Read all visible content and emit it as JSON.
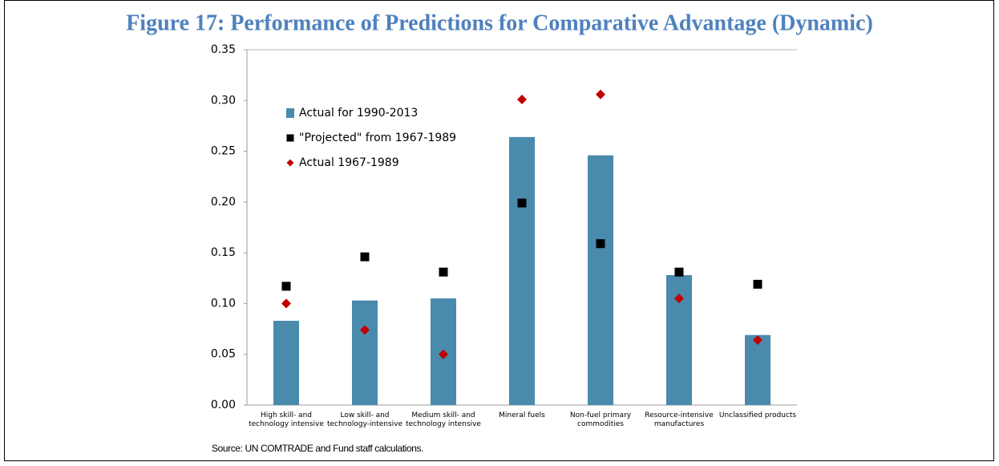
{
  "chart_data": {
    "type": "bar",
    "title": "Figure 17: Performance of Predictions for Comparative Advantage (Dynamic)",
    "source": "Source: UN COMTRADE and Fund staff calculations.",
    "categories": [
      "High skill- and technology intensive",
      "Low skill- and technology-intensive",
      "Medium skill- and technology intensive",
      "Mineral fuels",
      "Non-fuel primary commodities",
      "Resource-intensive manufactures",
      "Unclassified products"
    ],
    "series": [
      {
        "name": "Actual for 1990-2013",
        "color": "#4a8aad",
        "marker": "bar",
        "values": [
          0.083,
          0.103,
          0.105,
          0.264,
          0.246,
          0.128,
          0.069
        ]
      },
      {
        "name": "\"Projected\" from 1967-1989",
        "color": "#000000",
        "marker": "square",
        "values": [
          0.117,
          0.146,
          0.131,
          0.199,
          0.159,
          0.131,
          0.119
        ]
      },
      {
        "name": "Actual 1967-1989",
        "color": "#c00000",
        "marker": "diamond",
        "values": [
          0.1,
          0.074,
          0.05,
          0.301,
          0.306,
          0.105,
          0.064
        ]
      }
    ],
    "ylim": [
      0,
      0.35
    ],
    "yticks": [
      {
        "value": 0,
        "label": "0.00"
      },
      0.05,
      {
        "value": 0.1,
        "label": "0.10"
      },
      0.15,
      {
        "value": 0.2,
        "label": "0.20"
      },
      0.25,
      {
        "value": 0.3,
        "label": "0.30"
      },
      0.35
    ]
  }
}
